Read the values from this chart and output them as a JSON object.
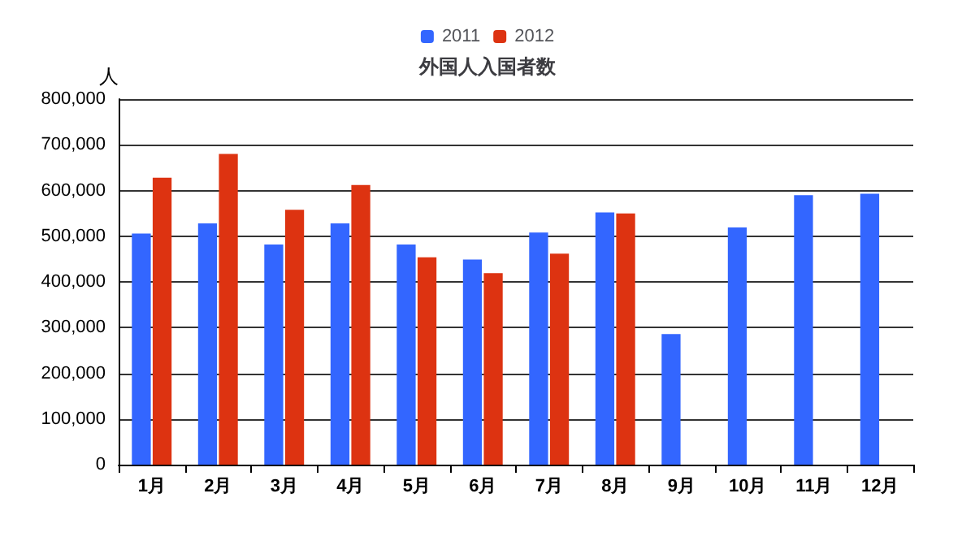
{
  "chart_data": {
    "type": "bar",
    "title": "外国人入国者数",
    "ylabel": "人",
    "categories": [
      "1月",
      "2月",
      "3月",
      "4月",
      "5月",
      "6月",
      "7月",
      "8月",
      "9月",
      "10月",
      "11月",
      "12月"
    ],
    "series": [
      {
        "name": "2011",
        "color": "#3366ff",
        "values": [
          506000,
          528000,
          482000,
          528000,
          482000,
          449000,
          508000,
          552000,
          286000,
          519000,
          590000,
          593000
        ]
      },
      {
        "name": "2012",
        "color": "#dd3311",
        "values": [
          628000,
          680000,
          558000,
          612000,
          454000,
          419000,
          462000,
          550000,
          null,
          null,
          null,
          null
        ]
      }
    ],
    "ylim": [
      0,
      800000
    ],
    "yticks": [
      0,
      {
        "value": 100000,
        "label": "100,000"
      },
      {
        "value": 200000,
        "label": "200,000"
      },
      {
        "value": 300000,
        "label": "300,000"
      },
      {
        "value": 400000,
        "label": "400,000"
      },
      {
        "value": 500000,
        "label": "500,000"
      },
      {
        "value": 600000,
        "label": "600,000"
      },
      {
        "value": 700000,
        "label": "700,000"
      },
      {
        "value": 800000,
        "label": "800,000"
      }
    ],
    "grid": "y",
    "legend": "top"
  }
}
